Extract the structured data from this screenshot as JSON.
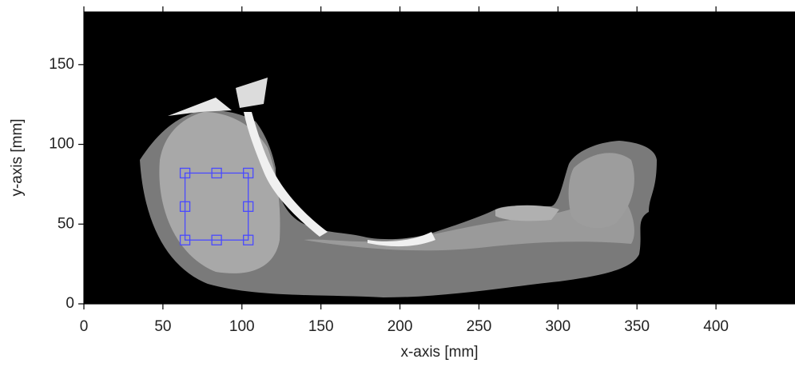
{
  "chart_data": {
    "type": "image",
    "x_label": "x-axis [mm]",
    "y_label": "y-axis [mm]",
    "xlim": [
      0,
      450
    ],
    "ylim": [
      0,
      183
    ],
    "xticks": [
      0,
      50,
      100,
      150,
      200,
      250,
      300,
      350,
      400
    ],
    "yticks": [
      0,
      50,
      100,
      150
    ],
    "roi": {
      "x": [
        64,
        104
      ],
      "y": [
        40,
        82
      ],
      "color": "#4a4aff"
    }
  }
}
